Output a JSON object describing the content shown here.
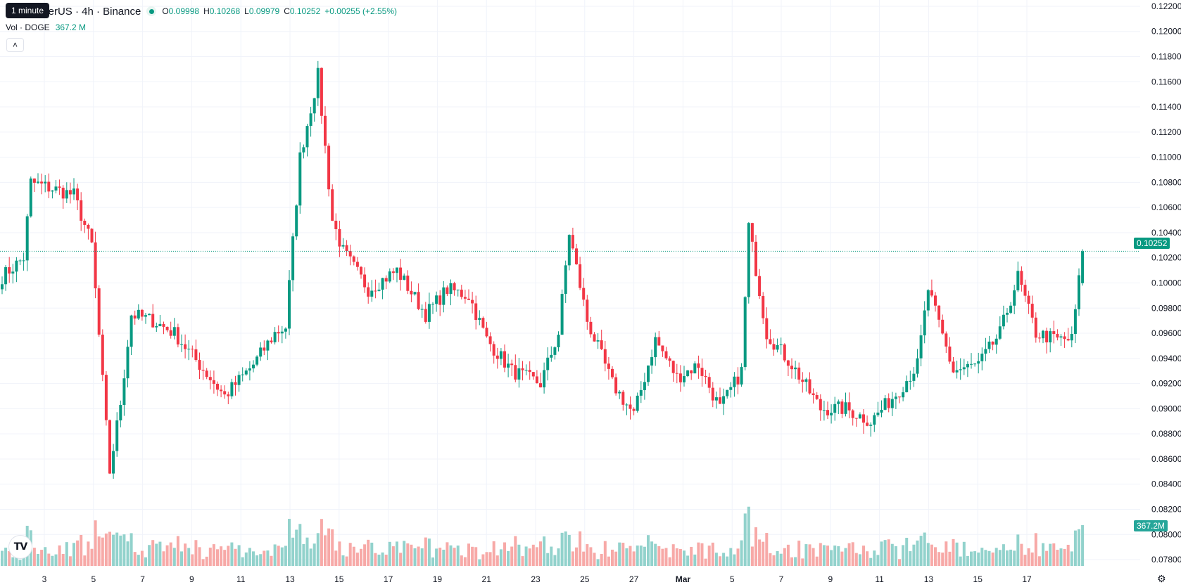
{
  "header": {
    "title": "oin / TetherUS · 4h · Binance",
    "tooltip": "1 minute",
    "ohlc": {
      "o_key": "O",
      "o": "0.09998",
      "h_key": "H",
      "h": "0.10268",
      "l_key": "L",
      "l": "0.09979",
      "c_key": "C",
      "c": "0.10252",
      "change": "+0.00255 (+2.55%)"
    },
    "volume_label": "Vol · DOGE",
    "volume_value": "367.2 M",
    "collapse_icon": "chevron-up-icon"
  },
  "price_scale": {
    "labels": [
      "0.12200",
      "0.12000",
      "0.11800",
      "0.11600",
      "0.11400",
      "0.11200",
      "0.11000",
      "0.10800",
      "0.10600",
      "0.10400",
      "0.10200",
      "0.10000",
      "0.09800",
      "0.09600",
      "0.09400",
      "0.09200",
      "0.09000",
      "0.08800",
      "0.08600",
      "0.08400",
      "0.08200",
      "0.08000",
      "0.07800"
    ],
    "last_price_label": "0.10252",
    "last_volume_label": "367.2M"
  },
  "time_scale": {
    "labels": [
      "3",
      "5",
      "7",
      "9",
      "11",
      "13",
      "15",
      "17",
      "19",
      "21",
      "23",
      "25",
      "27",
      "Mar",
      "5",
      "7",
      "9",
      "11",
      "13",
      "15",
      "17"
    ],
    "bold": [
      "Mar"
    ]
  },
  "colors": {
    "up": "#089981",
    "down": "#f23645",
    "vol_up": "#92d2cc",
    "vol_down": "#f7a9a7",
    "grid": "#f0f3fa"
  },
  "chart_data": {
    "type": "candlestick",
    "symbol_title": "oin / TetherUS · 4h · Binance",
    "interval": "4h",
    "y_range": [
      0.0775,
      0.1225
    ],
    "grid": true,
    "waypoints": [
      [
        0,
        0.1005
      ],
      [
        6,
        0.102
      ],
      [
        8,
        0.108
      ],
      [
        14,
        0.1075
      ],
      [
        20,
        0.107
      ],
      [
        25,
        0.103
      ],
      [
        30,
        0.085
      ],
      [
        33,
        0.0905
      ],
      [
        36,
        0.0975
      ],
      [
        42,
        0.097
      ],
      [
        48,
        0.096
      ],
      [
        55,
        0.0935
      ],
      [
        62,
        0.091
      ],
      [
        70,
        0.0935
      ],
      [
        76,
        0.096
      ],
      [
        79,
        0.0965
      ],
      [
        83,
        0.11
      ],
      [
        88,
        0.1165
      ],
      [
        92,
        0.105
      ],
      [
        95,
        0.1025
      ],
      [
        102,
        0.0995
      ],
      [
        110,
        0.101
      ],
      [
        118,
        0.0975
      ],
      [
        124,
        0.0995
      ],
      [
        130,
        0.099
      ],
      [
        135,
        0.0955
      ],
      [
        142,
        0.093
      ],
      [
        150,
        0.092
      ],
      [
        155,
        0.096
      ],
      [
        158,
        0.104
      ],
      [
        163,
        0.097
      ],
      [
        170,
        0.092
      ],
      [
        176,
        0.0895
      ],
      [
        182,
        0.0955
      ],
      [
        188,
        0.0925
      ],
      [
        194,
        0.0935
      ],
      [
        200,
        0.09
      ],
      [
        206,
        0.093
      ],
      [
        208,
        0.1045
      ],
      [
        213,
        0.096
      ],
      [
        220,
        0.0935
      ],
      [
        228,
        0.09
      ],
      [
        235,
        0.09
      ],
      [
        242,
        0.089
      ],
      [
        250,
        0.0915
      ],
      [
        255,
        0.0935
      ],
      [
        258,
        0.0995
      ],
      [
        265,
        0.093
      ],
      [
        272,
        0.0935
      ],
      [
        278,
        0.096
      ],
      [
        283,
        0.1005
      ],
      [
        288,
        0.096
      ],
      [
        294,
        0.0955
      ],
      [
        298,
        0.0955
      ],
      [
        301,
        0.1025
      ]
    ],
    "count": 302,
    "last": {
      "open": 0.09998,
      "high": 0.10268,
      "low": 0.09979,
      "close": 0.10252,
      "volume": "367.2M"
    }
  }
}
